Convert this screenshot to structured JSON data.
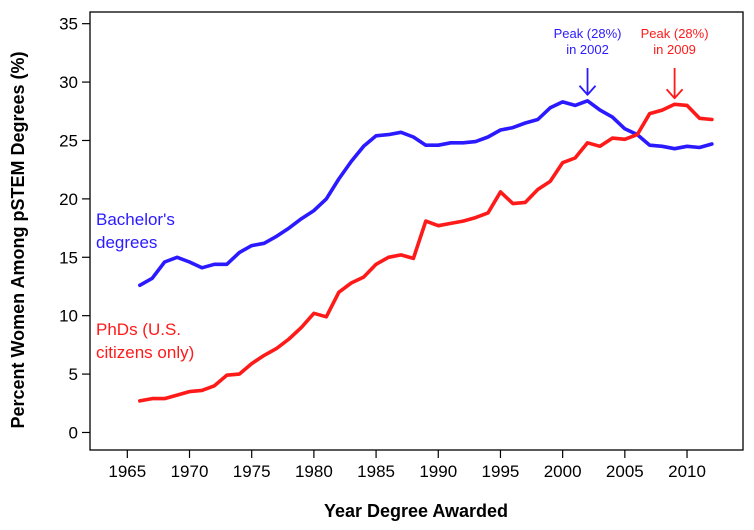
{
  "chart_data": {
    "type": "line",
    "xlabel": "Year Degree Awarded",
    "ylabel": "Percent Women Among pSTEM Degrees (%)",
    "xlim": [
      1962,
      2014.5
    ],
    "ylim": [
      -1.5,
      36
    ],
    "x_ticks": [
      1965,
      1970,
      1975,
      1980,
      1985,
      1990,
      1995,
      2000,
      2005,
      2010
    ],
    "y_ticks": [
      0,
      5,
      10,
      15,
      20,
      25,
      30,
      35
    ],
    "grid": false,
    "series": [
      {
        "name": "Bachelor's degrees",
        "label_lines": [
          "Bachelor's",
          "degrees"
        ],
        "color": "#2b1aff",
        "x": [
          1966,
          1967,
          1968,
          1969,
          1970,
          1971,
          1972,
          1973,
          1974,
          1975,
          1976,
          1977,
          1978,
          1979,
          1980,
          1981,
          1982,
          1983,
          1984,
          1985,
          1986,
          1987,
          1988,
          1989,
          1990,
          1991,
          1992,
          1993,
          1994,
          1995,
          1996,
          1997,
          1998,
          1999,
          2000,
          2001,
          2002,
          2003,
          2004,
          2005,
          2006,
          2007,
          2008,
          2009,
          2010,
          2011,
          2012
        ],
        "values": [
          12.6,
          13.2,
          14.6,
          15.0,
          14.6,
          14.1,
          14.4,
          14.4,
          15.4,
          16.0,
          16.2,
          16.8,
          17.5,
          18.3,
          19.0,
          20.0,
          21.7,
          23.2,
          24.5,
          25.4,
          25.5,
          25.7,
          25.3,
          24.6,
          24.6,
          24.8,
          24.8,
          24.9,
          25.3,
          25.9,
          26.1,
          26.5,
          26.8,
          27.8,
          28.3,
          28.0,
          28.4,
          27.6,
          27.0,
          26.0,
          25.5,
          24.6,
          24.5,
          24.3,
          24.5,
          24.4,
          24.7
        ]
      },
      {
        "name": "PhDs (U.S. citizens only)",
        "label_lines": [
          "PhDs (U.S.",
          "citizens only)"
        ],
        "color": "#ff1a1a",
        "x": [
          1966,
          1967,
          1968,
          1969,
          1970,
          1971,
          1972,
          1973,
          1974,
          1975,
          1976,
          1977,
          1978,
          1979,
          1980,
          1981,
          1982,
          1983,
          1984,
          1985,
          1986,
          1987,
          1988,
          1989,
          1990,
          1991,
          1992,
          1993,
          1994,
          1995,
          1996,
          1997,
          1998,
          1999,
          2000,
          2001,
          2002,
          2003,
          2004,
          2005,
          2006,
          2007,
          2008,
          2009,
          2010,
          2011,
          2012
        ],
        "values": [
          2.7,
          2.9,
          2.9,
          3.2,
          3.5,
          3.6,
          4.0,
          4.9,
          5.0,
          5.9,
          6.6,
          7.2,
          8.0,
          9.0,
          10.2,
          9.9,
          12.0,
          12.8,
          13.3,
          14.4,
          15.0,
          15.2,
          14.9,
          18.1,
          17.7,
          17.9,
          18.1,
          18.4,
          18.8,
          20.6,
          19.6,
          19.7,
          20.8,
          21.5,
          23.1,
          23.5,
          24.8,
          24.5,
          25.2,
          25.1,
          25.5,
          27.3,
          27.6,
          28.1,
          28.0,
          26.9,
          26.8
        ]
      }
    ],
    "annotations": [
      {
        "line1": "Peak (28%)",
        "line2": "in 2002",
        "x": 2002,
        "y": 28.4,
        "color": "#2b1aff"
      },
      {
        "line1": "Peak (28%)",
        "line2": "in 2009",
        "x": 2009,
        "y": 28.1,
        "color": "#ff1a1a"
      }
    ]
  }
}
